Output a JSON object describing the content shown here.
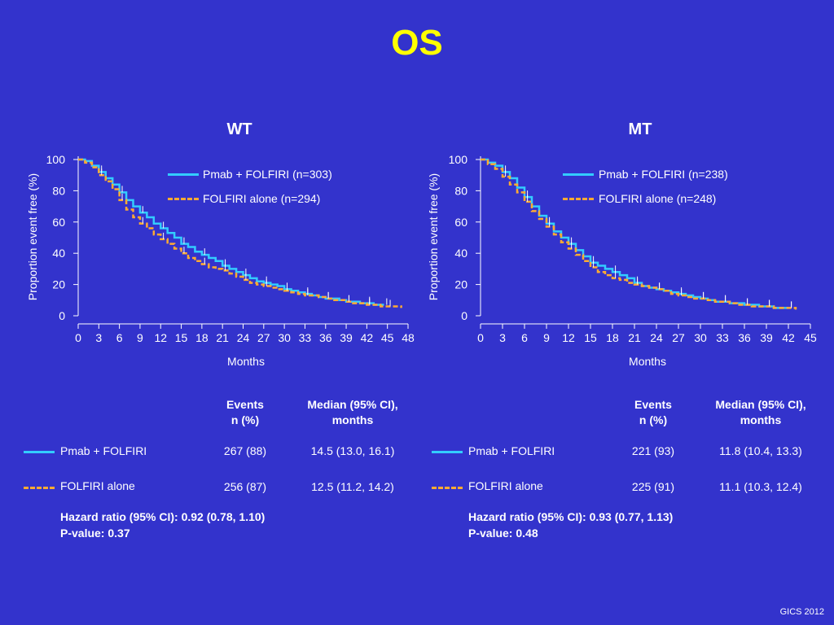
{
  "title": "OS",
  "colors": {
    "background": "#3333cc",
    "title": "#ffff00",
    "pmab": "#33ccff",
    "folfiri": "#ffaa33",
    "text": "#ffffff"
  },
  "chart_data": [
    {
      "type": "line",
      "title": "WT",
      "xlabel": "Months",
      "ylabel": "Proportion event free (%)",
      "xlim": [
        0,
        48
      ],
      "ylim": [
        0,
        100
      ],
      "xticks": [
        0,
        3,
        6,
        9,
        12,
        15,
        18,
        21,
        24,
        27,
        30,
        33,
        36,
        39,
        42,
        45,
        48
      ],
      "yticks": [
        0,
        20,
        40,
        60,
        80,
        100
      ],
      "legend": "top-right",
      "series": [
        {
          "name": "Pmab + FOLFIRI (n=303)",
          "style": "solid",
          "x": [
            0,
            1,
            2,
            3,
            4,
            5,
            6,
            7,
            8,
            9,
            10,
            11,
            12,
            13,
            14,
            15,
            16,
            17,
            18,
            19,
            20,
            21,
            22,
            23,
            24,
            25,
            26,
            27,
            28,
            29,
            30,
            31,
            32,
            33,
            34,
            35,
            36,
            37,
            38,
            39,
            40,
            41,
            42,
            43,
            44,
            44.5
          ],
          "y": [
            100,
            99,
            96,
            92,
            88,
            84,
            79,
            74,
            70,
            66,
            63,
            59,
            56,
            53,
            50,
            46,
            44,
            41,
            39,
            37,
            35,
            32,
            30,
            28,
            26,
            24,
            22,
            21,
            20,
            19,
            17,
            16,
            15,
            14,
            13,
            12,
            11,
            11,
            10,
            9,
            9,
            8,
            8,
            7,
            7,
            7
          ]
        },
        {
          "name": "FOLFIRI alone (n=294)",
          "style": "dashed",
          "x": [
            0,
            1,
            2,
            3,
            4,
            5,
            6,
            7,
            8,
            9,
            10,
            11,
            12,
            13,
            14,
            15,
            16,
            17,
            18,
            19,
            20,
            21,
            22,
            23,
            24,
            25,
            26,
            27,
            28,
            29,
            30,
            31,
            32,
            33,
            34,
            35,
            36,
            37,
            38,
            39,
            40,
            41,
            42,
            43,
            44,
            45,
            46,
            47
          ],
          "y": [
            100,
            98,
            95,
            90,
            86,
            81,
            74,
            68,
            63,
            59,
            56,
            52,
            49,
            46,
            43,
            40,
            37,
            35,
            33,
            31,
            30,
            29,
            27,
            25,
            23,
            21,
            20,
            19,
            18,
            17,
            16,
            15,
            14,
            13,
            13,
            12,
            11,
            10,
            10,
            9,
            8,
            8,
            7,
            7,
            6,
            6,
            6,
            5
          ]
        }
      ]
    },
    {
      "type": "line",
      "title": "MT",
      "xlabel": "Months",
      "ylabel": "Proportion event free (%)",
      "xlim": [
        0,
        45
      ],
      "ylim": [
        0,
        100
      ],
      "xticks": [
        0,
        3,
        6,
        9,
        12,
        15,
        18,
        21,
        24,
        27,
        30,
        33,
        36,
        39,
        42,
        45
      ],
      "yticks": [
        0,
        20,
        40,
        60,
        80,
        100
      ],
      "legend": "top-right",
      "series": [
        {
          "name": "Pmab + FOLFIRI (n=238)",
          "style": "solid",
          "x": [
            0,
            1,
            2,
            3,
            4,
            5,
            6,
            7,
            8,
            9,
            10,
            11,
            12,
            13,
            14,
            15,
            16,
            17,
            18,
            19,
            20,
            21,
            22,
            23,
            24,
            25,
            26,
            27,
            28,
            29,
            30,
            31,
            32,
            33,
            34,
            35,
            36,
            37,
            38,
            39,
            40,
            41,
            42
          ],
          "y": [
            100,
            98,
            96,
            92,
            88,
            82,
            76,
            70,
            64,
            59,
            54,
            50,
            46,
            42,
            38,
            34,
            32,
            30,
            28,
            26,
            24,
            21,
            19,
            18,
            17,
            16,
            15,
            14,
            13,
            12,
            11,
            10,
            9,
            9,
            8,
            8,
            7,
            7,
            6,
            6,
            5,
            5,
            5
          ]
        },
        {
          "name": "FOLFIRI alone (n=248)",
          "style": "dashed",
          "x": [
            0,
            1,
            2,
            3,
            4,
            5,
            6,
            7,
            8,
            9,
            10,
            11,
            12,
            13,
            14,
            15,
            16,
            17,
            18,
            19,
            20,
            21,
            22,
            23,
            24,
            25,
            26,
            27,
            28,
            29,
            30,
            31,
            32,
            33,
            34,
            35,
            36,
            37,
            38,
            39,
            40,
            41,
            42,
            43
          ],
          "y": [
            100,
            97,
            94,
            89,
            84,
            79,
            73,
            67,
            62,
            57,
            52,
            47,
            43,
            39,
            35,
            31,
            28,
            26,
            24,
            23,
            21,
            20,
            19,
            18,
            17,
            16,
            14,
            13,
            12,
            11,
            11,
            10,
            9,
            9,
            8,
            7,
            7,
            6,
            6,
            6,
            5,
            5,
            5,
            4
          ]
        }
      ]
    }
  ],
  "panels": [
    {
      "legend": [
        "Pmab + FOLFIRI (n=303)",
        "FOLFIRI alone (n=294)"
      ],
      "table": {
        "headers": [
          "Events\nn (%)",
          "Median (95% CI),\nmonths"
        ],
        "rows": [
          {
            "label": "Pmab + FOLFIRI",
            "events": "267 (88)",
            "median": "14.5 (13.0, 16.1)"
          },
          {
            "label": "FOLFIRI alone",
            "events": "256 (87)",
            "median": "12.5 (11.2, 14.2)"
          }
        ],
        "hazard": "Hazard ratio (95% CI): 0.92 (0.78, 1.10)",
        "pvalue": "P-value: 0.37"
      }
    },
    {
      "legend": [
        "Pmab + FOLFIRI (n=238)",
        "FOLFIRI alone (n=248)"
      ],
      "table": {
        "headers": [
          "Events\nn (%)",
          "Median (95% CI),\nmonths"
        ],
        "rows": [
          {
            "label": "Pmab + FOLFIRI",
            "events": "221 (93)",
            "median": "11.8 (10.4, 13.3)"
          },
          {
            "label": "FOLFIRI alone",
            "events": "225 (91)",
            "median": "11.1 (10.3, 12.4)"
          }
        ],
        "hazard": "Hazard ratio (95% CI): 0.93 (0.77, 1.13)",
        "pvalue": "P-value: 0.48"
      }
    }
  ],
  "footer": "GICS 2012"
}
